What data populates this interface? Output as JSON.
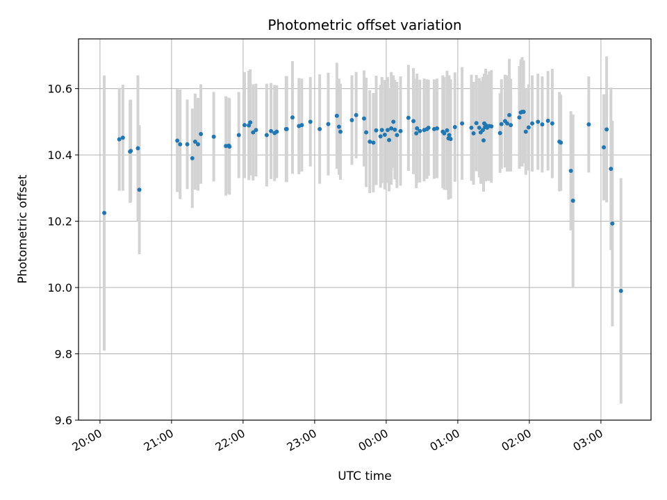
{
  "chart_data": {
    "type": "scatter",
    "title": "Photometric offset variation",
    "xlabel": "UTC time",
    "ylabel": "Photometric offset",
    "x_tick_labels": [
      "20:00",
      "21:00",
      "22:00",
      "23:00",
      "00:00",
      "01:00",
      "02:00",
      "03:00"
    ],
    "y_tick_labels": [
      "9.6",
      "9.8",
      "10.0",
      "10.2",
      "10.4",
      "10.6"
    ],
    "y_ticks": [
      9.6,
      9.8,
      10.0,
      10.2,
      10.4,
      10.6
    ],
    "xlim_hours_since_20": [
      -0.3,
      7.7
    ],
    "ylim": [
      9.6,
      10.75
    ],
    "grid": true,
    "colors": {
      "marker": "#1f77b4",
      "errorbar": "#d3d3d3",
      "grid": "#b0b0b0"
    },
    "series": [
      {
        "x_hours_since_20": [
          0.06,
          0.27,
          0.32,
          0.42,
          0.43,
          0.53,
          0.55,
          1.08,
          1.12,
          1.22,
          1.29,
          1.33,
          1.37,
          1.41,
          1.59,
          1.76,
          1.8,
          1.81,
          1.94,
          2.02,
          2.08,
          2.1,
          2.14,
          2.18,
          2.33,
          2.39,
          2.44,
          2.47,
          2.6,
          2.61,
          2.69,
          2.78,
          2.82,
          2.94,
          3.07,
          3.19,
          3.31,
          3.34,
          3.36,
          3.52,
          3.58,
          3.69,
          3.72,
          3.77,
          3.82,
          3.86,
          3.92,
          3.94,
          3.98,
          4.02,
          4.04,
          4.07,
          4.1,
          4.12,
          4.15,
          4.2,
          4.31,
          4.38,
          4.42,
          4.43,
          4.47,
          4.53,
          4.57,
          4.59,
          4.67,
          4.71,
          4.79,
          4.81,
          4.85,
          4.87,
          4.88,
          4.9,
          4.96,
          5.06,
          5.19,
          5.22,
          5.26,
          5.3,
          5.32,
          5.35,
          5.36,
          5.37,
          5.38,
          5.39,
          5.41,
          5.44,
          5.47,
          5.59,
          5.61,
          5.66,
          5.69,
          5.72,
          5.74,
          5.86,
          5.88,
          5.9,
          5.92,
          5.95,
          5.99,
          6.04,
          6.12,
          6.18,
          6.26,
          6.32,
          6.42,
          6.44,
          6.58,
          6.61,
          6.83,
          7.04,
          7.08,
          7.14,
          7.16,
          7.28
        ],
        "y": [
          10.225,
          10.447,
          10.452,
          10.41,
          10.412,
          10.42,
          10.295,
          10.443,
          10.432,
          10.432,
          10.39,
          10.44,
          10.432,
          10.463,
          10.455,
          10.427,
          10.428,
          10.425,
          10.46,
          10.49,
          10.489,
          10.498,
          10.468,
          10.475,
          10.46,
          10.472,
          10.466,
          10.47,
          10.478,
          10.478,
          10.513,
          10.487,
          10.49,
          10.5,
          10.478,
          10.493,
          10.518,
          10.485,
          10.47,
          10.505,
          10.52,
          10.51,
          10.468,
          10.44,
          10.437,
          10.474,
          10.456,
          10.475,
          10.461,
          10.475,
          10.445,
          10.48,
          10.5,
          10.476,
          10.46,
          10.472,
          10.512,
          10.502,
          10.465,
          10.48,
          10.472,
          10.475,
          10.478,
          10.482,
          10.478,
          10.48,
          10.47,
          10.465,
          10.474,
          10.45,
          10.46,
          10.448,
          10.484,
          10.495,
          10.482,
          10.465,
          10.496,
          10.482,
          10.468,
          10.475,
          10.444,
          10.495,
          10.484,
          10.49,
          10.482,
          10.487,
          10.486,
          10.466,
          10.493,
          10.502,
          10.495,
          10.52,
          10.49,
          10.513,
          10.528,
          10.53,
          10.53,
          10.47,
          10.483,
          10.495,
          10.5,
          10.492,
          10.503,
          10.495,
          10.44,
          10.437,
          10.352,
          10.262,
          10.492,
          10.423,
          10.477,
          10.358,
          10.193,
          9.99
        ],
        "yerr": [
          0.415,
          0.155,
          0.16,
          0.155,
          0.155,
          0.22,
          0.195,
          0.155,
          0.165,
          0.135,
          0.15,
          0.145,
          0.14,
          0.15,
          0.135,
          0.15,
          0.145,
          0.145,
          0.13,
          0.16,
          0.165,
          0.16,
          0.145,
          0.14,
          0.155,
          0.145,
          0.145,
          0.14,
          0.16,
          0.16,
          0.17,
          0.145,
          0.14,
          0.135,
          0.165,
          0.155,
          0.16,
          0.145,
          0.145,
          0.135,
          0.13,
          0.145,
          0.165,
          0.155,
          0.15,
          0.165,
          0.155,
          0.16,
          0.165,
          0.16,
          0.155,
          0.17,
          0.14,
          0.15,
          0.16,
          0.165,
          0.16,
          0.16,
          0.165,
          0.165,
          0.155,
          0.155,
          0.15,
          0.145,
          0.15,
          0.15,
          0.17,
          0.17,
          0.18,
          0.185,
          0.18,
          0.18,
          0.165,
          0.17,
          0.16,
          0.155,
          0.145,
          0.15,
          0.155,
          0.16,
          0.155,
          0.15,
          0.155,
          0.17,
          0.16,
          0.165,
          0.17,
          0.12,
          0.135,
          0.14,
          0.145,
          0.17,
          0.14,
          0.155,
          0.16,
          0.165,
          0.155,
          0.13,
          0.13,
          0.145,
          0.145,
          0.145,
          0.15,
          0.165,
          0.15,
          0.145,
          0.18,
          0.26,
          0.145,
          0.16,
          0.22,
          0.245,
          0.31,
          0.34
        ]
      }
    ]
  }
}
